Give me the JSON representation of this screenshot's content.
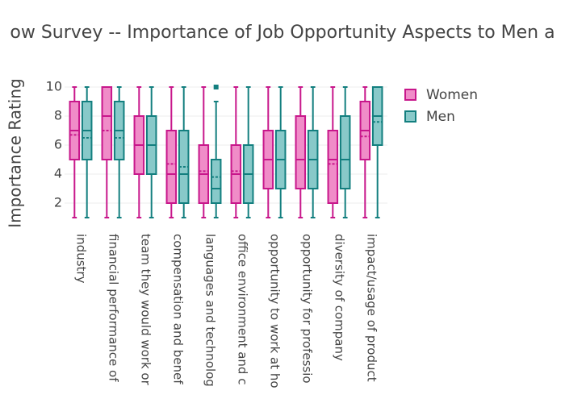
{
  "chart_data": {
    "type": "box",
    "title": "ow Survey -- Importance of Job Opportunity Aspects to Men a",
    "y_label": "Importance Rating",
    "categories": [
      "industry",
      "financial performance of",
      "team they would work or",
      "compensation and benef",
      "languages and technolog",
      "office environment and c",
      "opportunity to work at ho",
      "opportunity for professio",
      "diversity of company",
      "impact/usage of product"
    ],
    "ylim": [
      0.5,
      10.5
    ],
    "yticks": [
      2,
      4,
      6,
      8,
      10
    ],
    "grid": true,
    "legend": "top-right",
    "series": [
      {
        "name": "Women",
        "color": "#c8178b",
        "fill": "#f08cc8",
        "lower": [
          1,
          1,
          1,
          1,
          1,
          1,
          1,
          1,
          1,
          1
        ],
        "q1": [
          5,
          5,
          4,
          2,
          2,
          2,
          3,
          3,
          2,
          5
        ],
        "median": [
          7,
          8,
          6,
          4,
          4,
          4,
          5,
          5,
          5,
          7
        ],
        "q3": [
          9,
          10,
          8,
          7,
          6,
          6,
          7,
          8,
          7,
          9
        ],
        "upper": [
          10,
          10,
          10,
          10,
          10,
          10,
          10,
          10,
          10,
          10
        ],
        "mean": [
          6.7,
          7.0,
          6.0,
          4.7,
          4.2,
          4.2,
          5.0,
          5.0,
          4.7,
          6.6
        ]
      },
      {
        "name": "Men",
        "color": "#137f7f",
        "fill": "#88c9c9",
        "lower": [
          1,
          1,
          1,
          1,
          1,
          1,
          1,
          1,
          1,
          1
        ],
        "q1": [
          5,
          5,
          4,
          2,
          2,
          2,
          3,
          3,
          3,
          6
        ],
        "median": [
          7,
          7,
          6,
          4,
          3,
          4,
          5,
          5,
          5,
          8
        ],
        "q3": [
          9,
          9,
          8,
          7,
          5,
          6,
          7,
          7,
          8,
          10
        ],
        "upper": [
          10,
          10,
          10,
          10,
          9,
          10,
          10,
          10,
          10,
          10
        ],
        "mean": [
          6.5,
          6.5,
          6.0,
          4.5,
          3.8,
          4.0,
          5.0,
          5.0,
          5.0,
          7.6
        ],
        "outliers": [
          [],
          [],
          [],
          [],
          [
            10
          ],
          [],
          [],
          [],
          [],
          []
        ]
      }
    ]
  }
}
